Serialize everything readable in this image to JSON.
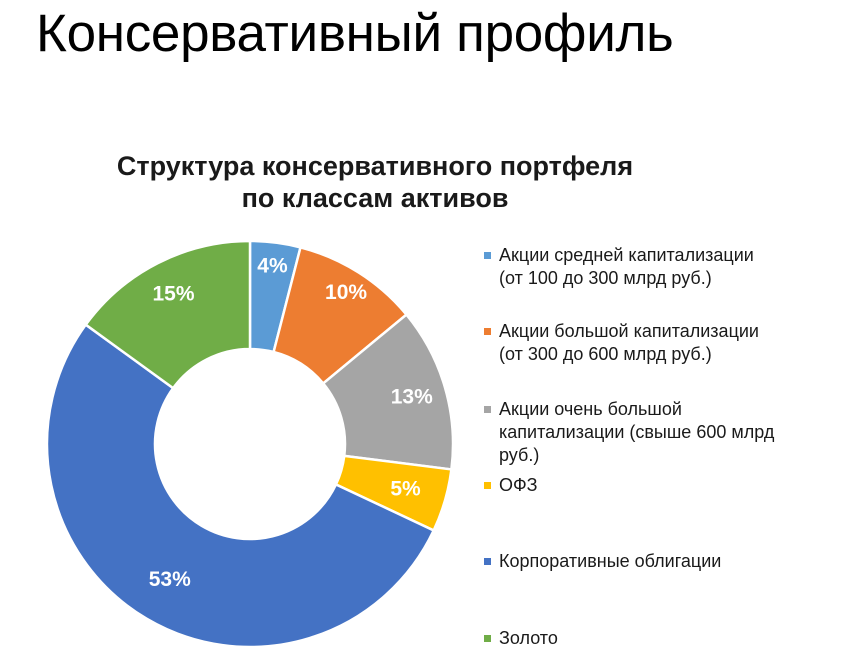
{
  "slide": {
    "title": "Консервативный профиль"
  },
  "chart_data": {
    "type": "pie",
    "variant": "donut",
    "title_lines": [
      "Структура консервативного портфеля",
      "по классам активов"
    ],
    "series": [
      {
        "name": "Акции средней капитализации\n(от 100 до 300 млрд руб.)",
        "value": 4,
        "label": "4%",
        "color": "#5b9bd5"
      },
      {
        "name": "Акции большой капитализации\n(от 300 до 600 млрд руб.)",
        "value": 10,
        "label": "10%",
        "color": "#ed7d31"
      },
      {
        "name": "Акции очень большой\nкапитализации  (свыше 600 млрд\nруб.)",
        "value": 13,
        "label": "13%",
        "color": "#a5a5a5"
      },
      {
        "name": "ОФЗ",
        "value": 5,
        "label": "5%",
        "color": "#ffc000"
      },
      {
        "name": "Корпоративные облигации",
        "value": 53,
        "label": "53%",
        "color": "#4472c4"
      },
      {
        "name": "Золото",
        "value": 15,
        "label": "15%",
        "color": "#70ad47"
      }
    ],
    "legend_position": "right",
    "start_angle_deg": 0,
    "direction": "clockwise",
    "label_color": "#ffffff",
    "separator_color": "#ffffff"
  }
}
